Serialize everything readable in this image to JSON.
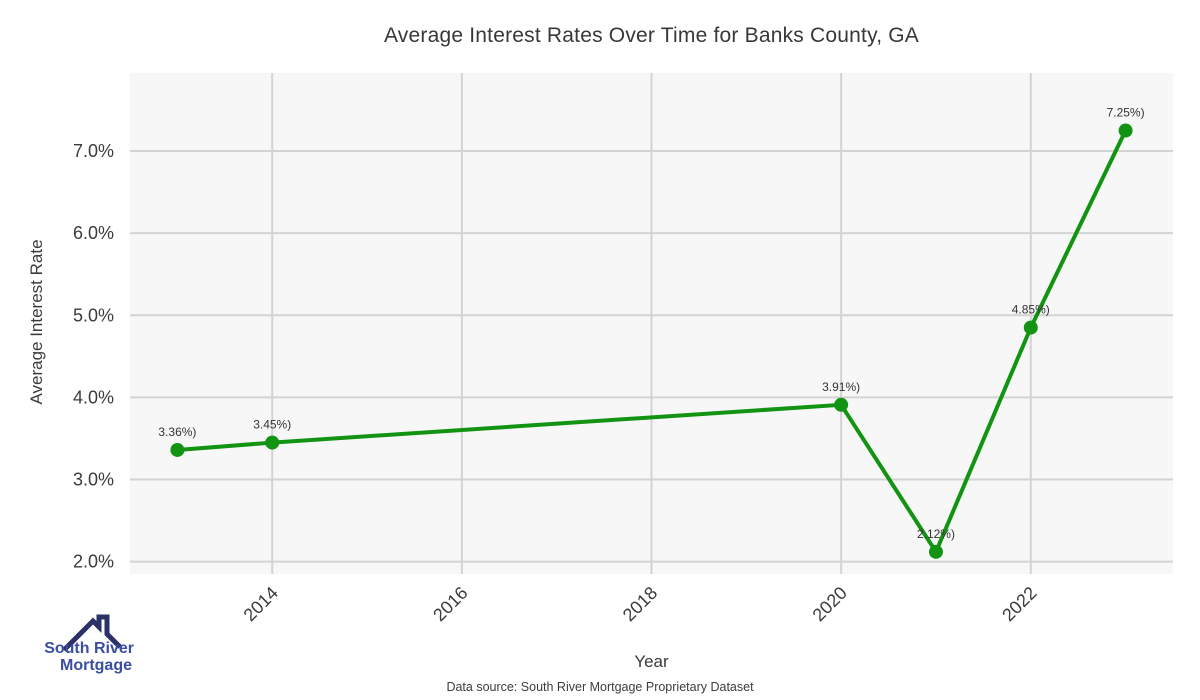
{
  "title": "Average Interest Rates Over Time for Banks County, GA",
  "chart_data": {
    "type": "line",
    "x": [
      2013,
      2014,
      2020,
      2021,
      2022,
      2023
    ],
    "values": [
      3.36,
      3.45,
      3.91,
      2.12,
      4.85,
      7.25
    ],
    "point_labels": [
      "3.36%)",
      "3.45%)",
      "3.91%)",
      "2.12%)",
      "4.85%)",
      "7.25%)"
    ],
    "title": "Average Interest Rates Over Time for Banks County, GA",
    "xlabel": "Year",
    "ylabel": "Average Interest Rate",
    "xlim": [
      2012.5,
      2023.5
    ],
    "ylim": [
      1.85,
      7.95
    ],
    "xticks": [
      2014,
      2016,
      2018,
      2020,
      2022
    ],
    "yticks": [
      2,
      3,
      4,
      5,
      6,
      7
    ],
    "ytick_labels": [
      "2.0%",
      "3.0%",
      "4.0%",
      "5.0%",
      "6.0%",
      "7.0%"
    ],
    "grid": true,
    "legend": "none",
    "line_color": "#129412",
    "marker_color": "#129412",
    "plot_bg": "#f7f7f7",
    "grid_color": "#d3d3d3",
    "tick_color": "#3b3b3b",
    "point_label_color": "#333333"
  },
  "axes": {
    "xlabel": "Year",
    "ylabel": "Average Interest Rate"
  },
  "footer": {
    "source": "Data source: South River Mortgage Proprietary Dataset"
  },
  "logo": {
    "line1": "South River",
    "line2": "Mortgage",
    "text_color": "#3a4ea2",
    "roof_color": "#2b3166"
  }
}
